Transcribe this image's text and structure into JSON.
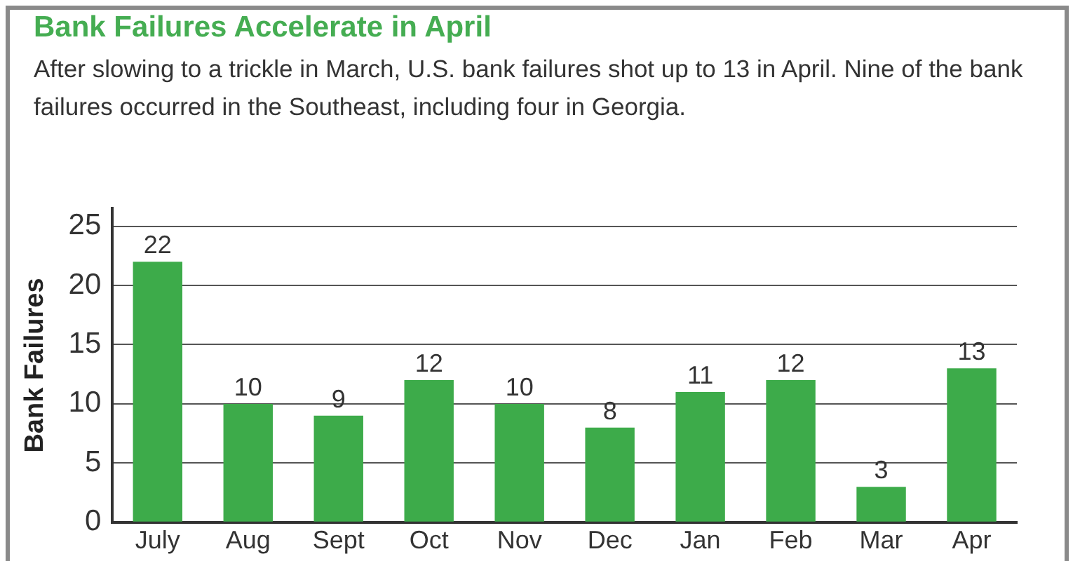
{
  "chart_data": {
    "type": "bar",
    "title": "Bank Failures Accelerate in April",
    "subtitle": "After slowing to a trickle in March, U.S. bank failures shot up to 13 in April. Nine of the bank failures occurred in the Southeast, including four in Georgia.",
    "ylabel": "Bank Failures",
    "categories": [
      "July",
      "Aug",
      "Sept",
      "Oct",
      "Nov",
      "Dec",
      "Jan",
      "Feb",
      "Mar",
      "Apr"
    ],
    "values": [
      22,
      10,
      9,
      12,
      10,
      8,
      11,
      12,
      3,
      13
    ],
    "color": "#3dab4a",
    "ylim": [
      0,
      26.5
    ],
    "yticks": [
      0,
      5,
      10,
      15,
      20,
      25
    ],
    "grid": "y",
    "data_labels": true,
    "legend": false
  }
}
